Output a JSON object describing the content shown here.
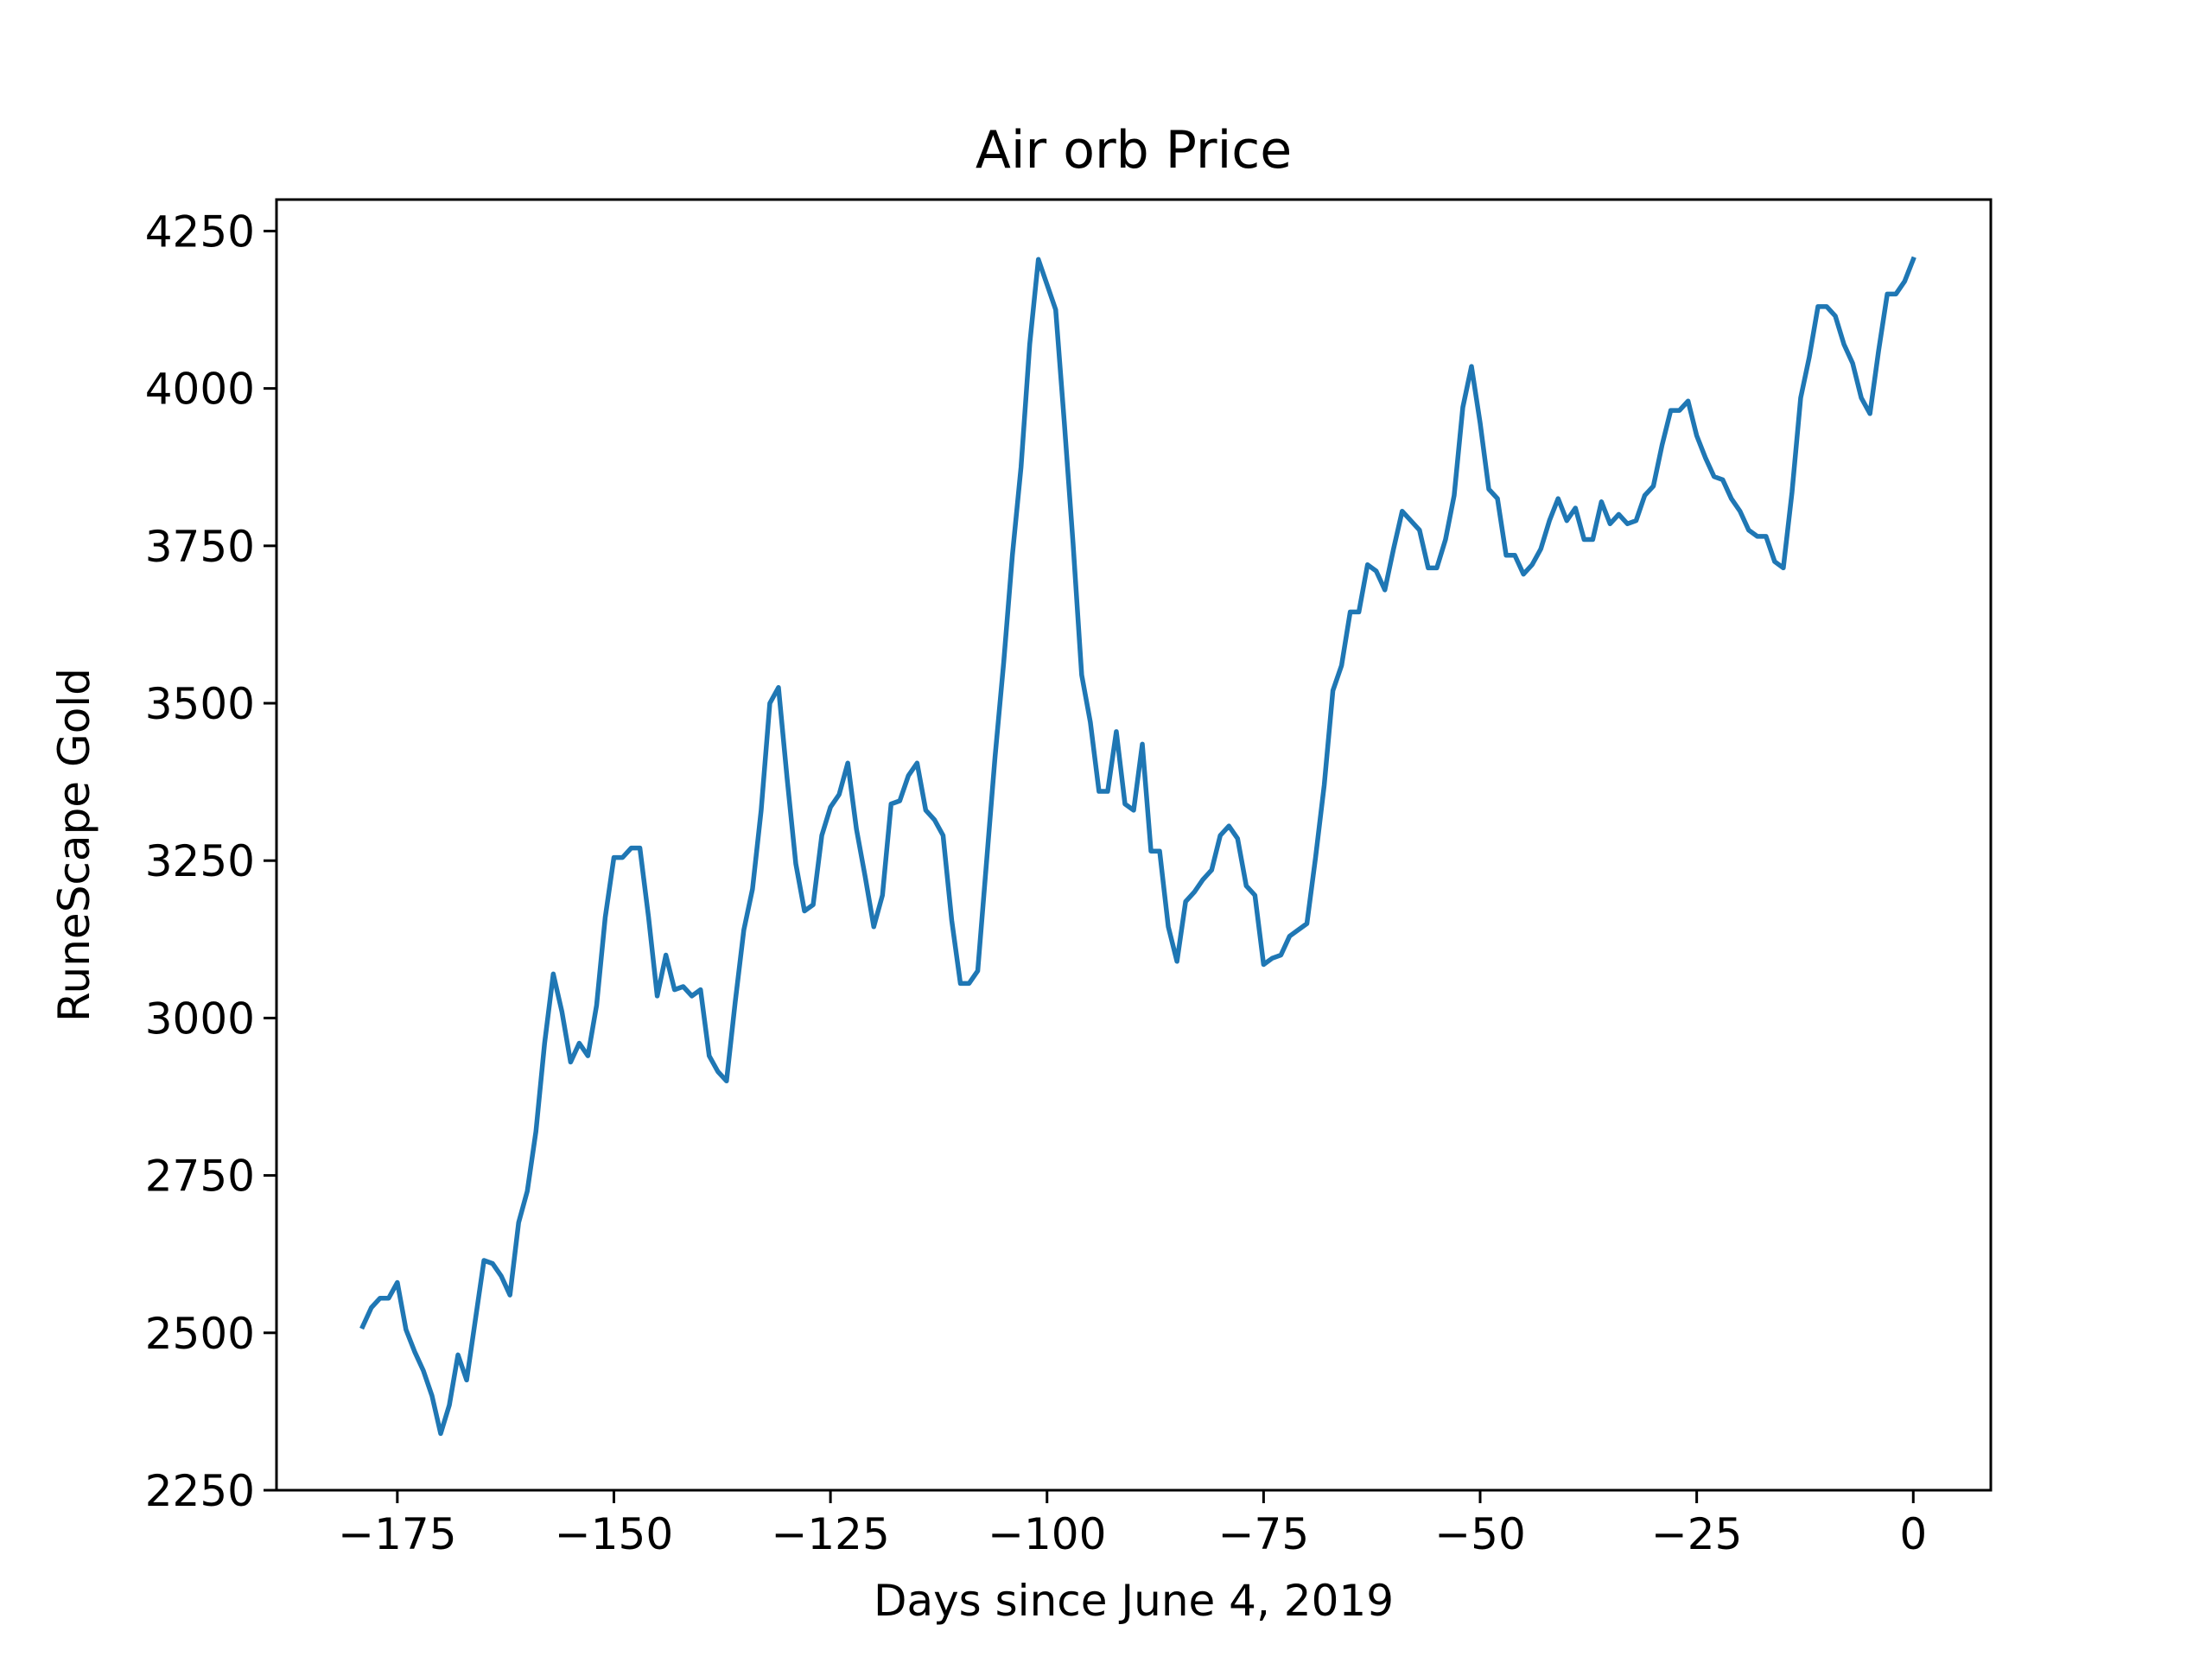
{
  "chart_data": {
    "type": "line",
    "title": "Air orb Price",
    "xlabel": "Days since June 4, 2019",
    "ylabel": "RuneScape Gold",
    "xlim": [
      -188.95,
      8.95
    ],
    "ylim": [
      2250,
      4300
    ],
    "x_ticks": [
      -175,
      -150,
      -125,
      -100,
      -75,
      -50,
      -25,
      0
    ],
    "y_ticks": [
      2250,
      2500,
      2750,
      3000,
      3250,
      3500,
      3750,
      4000,
      4250
    ],
    "grid": false,
    "line_color": "#1f77b4",
    "series": [
      {
        "x": [
          -179,
          -178,
          -177,
          -176,
          -175,
          -174,
          -173,
          -172,
          -171,
          -170,
          -169,
          -168,
          -167,
          -166,
          -165,
          -164,
          -163,
          -162,
          -161,
          -160,
          -159,
          -158,
          -157,
          -156,
          -155,
          -154,
          -153,
          -152,
          -151,
          -150,
          -149,
          -148,
          -147,
          -146,
          -145,
          -144,
          -143,
          -142,
          -141,
          -140,
          -139,
          -138,
          -137,
          -136,
          -135,
          -134,
          -133,
          -132,
          -131,
          -130,
          -129,
          -128,
          -127,
          -126,
          -125,
          -124,
          -123,
          -122,
          -121,
          -120,
          -119,
          -118,
          -117,
          -116,
          -115,
          -114,
          -113,
          -112,
          -111,
          -110,
          -109,
          -108,
          -107,
          -106,
          -105,
          -104,
          -103,
          -102,
          -101,
          -100,
          -99,
          -98,
          -97,
          -96,
          -95,
          -94,
          -93,
          -92,
          -91,
          -90,
          -89,
          -88,
          -87,
          -86,
          -85,
          -84,
          -83,
          -82,
          -81,
          -80,
          -79,
          -78,
          -77,
          -76,
          -75,
          -74,
          -73,
          -72,
          -71,
          -70,
          -69,
          -68,
          -67,
          -66,
          -65,
          -64,
          -63,
          -62,
          -61,
          -60,
          -59,
          -58,
          -57,
          -56,
          -55,
          -54,
          -53,
          -52,
          -51,
          -50,
          -49,
          -48,
          -47,
          -46,
          -45,
          -44,
          -43,
          -42,
          -41,
          -40,
          -39,
          -38,
          -37,
          -36,
          -35,
          -34,
          -33,
          -32,
          -31,
          -30,
          -29,
          -28,
          -27,
          -26,
          -25,
          -24,
          -23,
          -22,
          -21,
          -20,
          -19,
          -18,
          -17,
          -16,
          -15,
          -14,
          -13,
          -12,
          -11,
          -10,
          -9,
          -8,
          -7,
          -6,
          -5,
          -4,
          -3,
          -2,
          -1,
          0
        ],
        "y": [
          2510,
          2540,
          2555,
          2555,
          2580,
          2505,
          2470,
          2440,
          2400,
          2340,
          2385,
          2465,
          2425,
          2520,
          2615,
          2610,
          2590,
          2560,
          2675,
          2725,
          2820,
          2960,
          3070,
          3010,
          2930,
          2960,
          2940,
          3020,
          3160,
          3255,
          3255,
          3270,
          3270,
          3160,
          3035,
          3100,
          3045,
          3050,
          3035,
          3045,
          2940,
          2915,
          2900,
          3025,
          3140,
          3205,
          3330,
          3500,
          3525,
          3380,
          3245,
          3170,
          3180,
          3290,
          3335,
          3355,
          3405,
          3300,
          3225,
          3145,
          3195,
          3340,
          3345,
          3385,
          3405,
          3330,
          3315,
          3290,
          3155,
          3055,
          3055,
          3075,
          3245,
          3415,
          3565,
          3735,
          3875,
          4070,
          4205,
          4165,
          4125,
          3945,
          3755,
          3545,
          3470,
          3360,
          3360,
          3455,
          3340,
          3330,
          3435,
          3265,
          3265,
          3145,
          3090,
          3185,
          3200,
          3220,
          3235,
          3290,
          3305,
          3285,
          3210,
          3195,
          3085,
          3095,
          3100,
          3130,
          3140,
          3150,
          3255,
          3370,
          3520,
          3560,
          3645,
          3645,
          3720,
          3710,
          3680,
          3745,
          3805,
          3790,
          3775,
          3715,
          3715,
          3760,
          3830,
          3970,
          4035,
          3945,
          3840,
          3825,
          3735,
          3735,
          3705,
          3720,
          3745,
          3790,
          3825,
          3790,
          3810,
          3760,
          3760,
          3820,
          3785,
          3800,
          3785,
          3790,
          3830,
          3845,
          3910,
          3965,
          3965,
          3980,
          3925,
          3890,
          3860,
          3855,
          3825,
          3805,
          3775,
          3765,
          3765,
          3725,
          3715,
          3835,
          3985,
          4050,
          4130,
          4130,
          4115,
          4070,
          4040,
          3985,
          3960,
          4060,
          4150,
          4150,
          4170,
          4205
        ]
      }
    ]
  }
}
